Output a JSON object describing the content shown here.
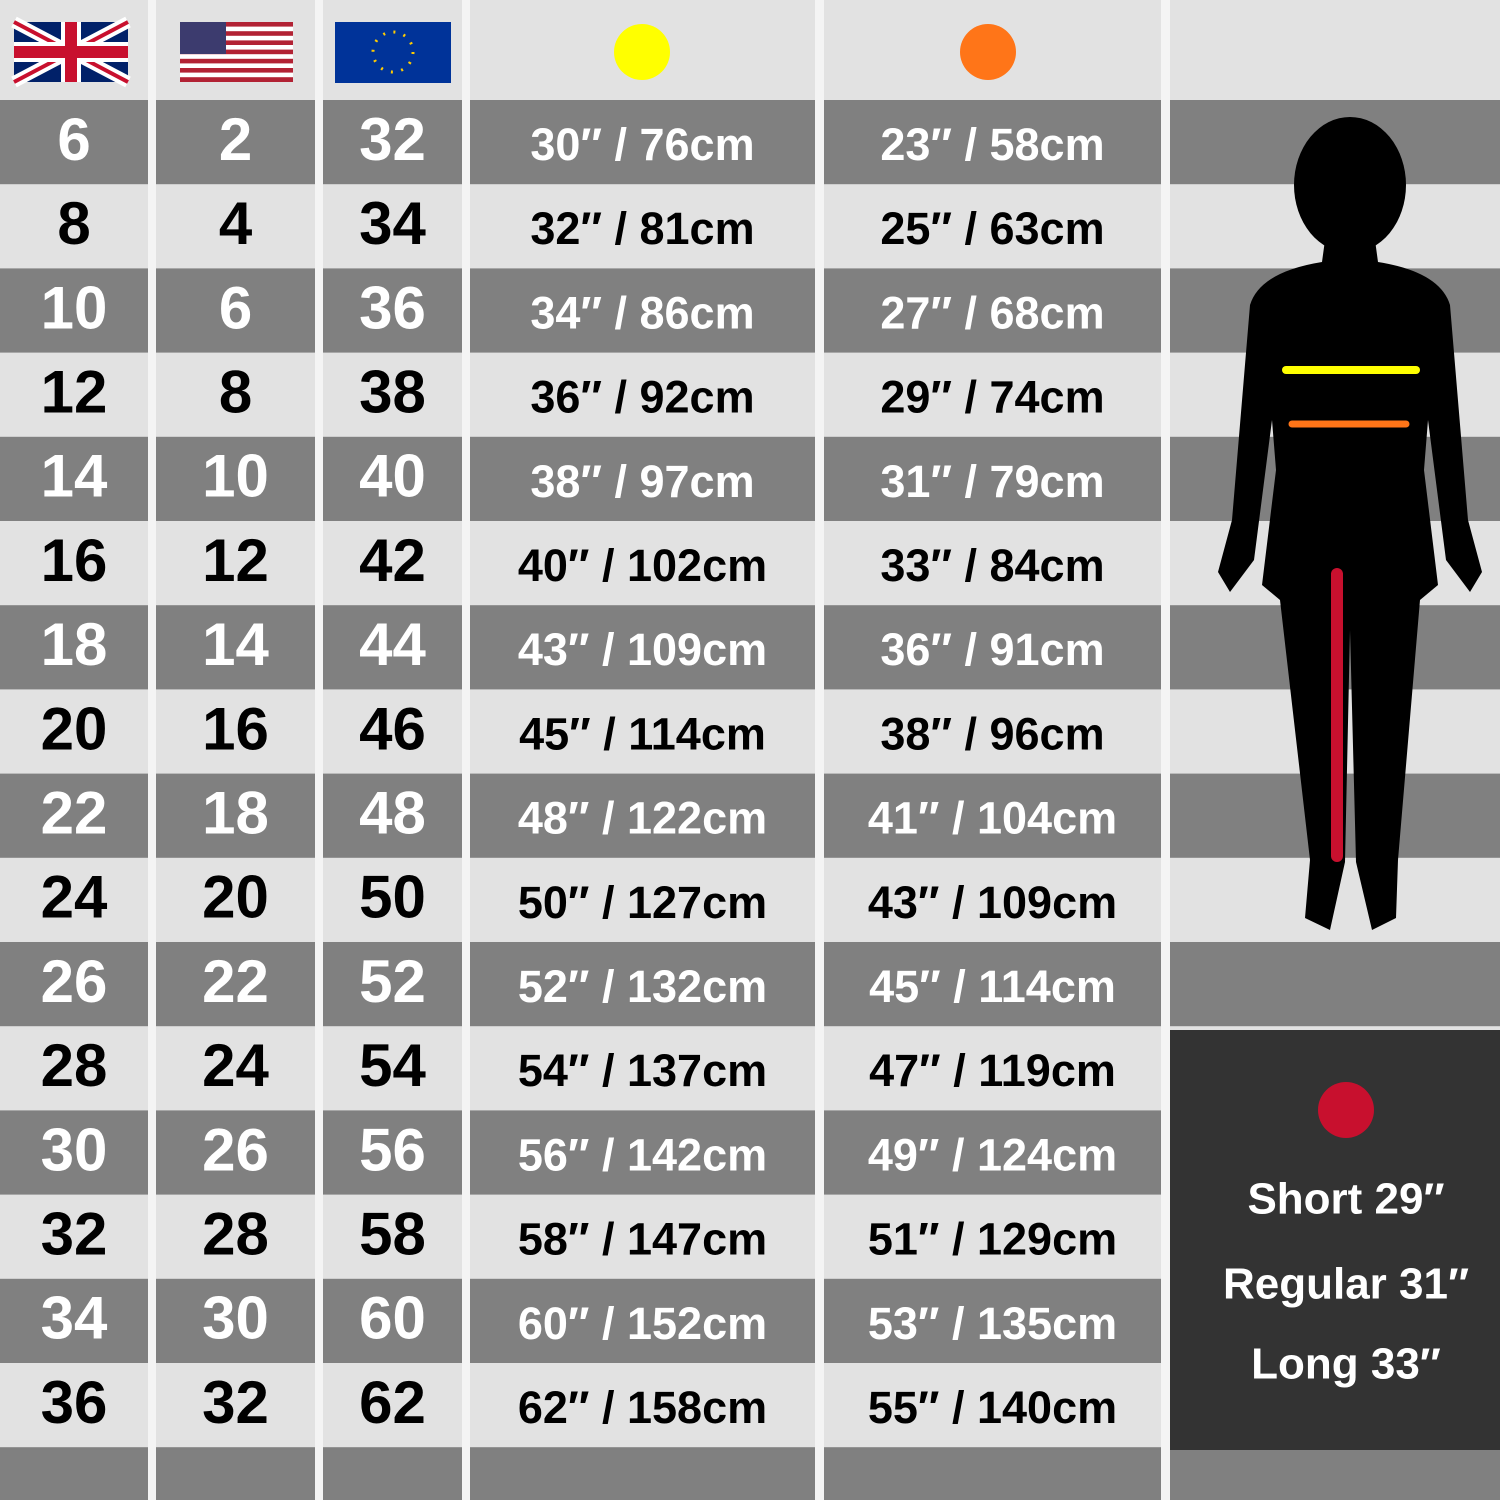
{
  "table": {
    "rows": [
      [
        6,
        2,
        32,
        "30″ / 76cm",
        "23″ / 58cm"
      ],
      [
        8,
        4,
        34,
        "32″ / 81cm",
        "25″ / 63cm"
      ],
      [
        10,
        6,
        36,
        "34″ / 86cm",
        "27″ / 68cm"
      ],
      [
        12,
        8,
        38,
        "36″ / 92cm",
        "29″ / 74cm"
      ],
      [
        14,
        10,
        40,
        "38″ / 97cm",
        "31″ / 79cm"
      ],
      [
        16,
        12,
        42,
        "40″ / 102cm",
        "33″ / 84cm"
      ],
      [
        18,
        14,
        44,
        "43″ / 109cm",
        "36″ / 91cm"
      ],
      [
        20,
        16,
        46,
        "45″ / 114cm",
        "38″ / 96cm"
      ],
      [
        22,
        18,
        48,
        "48″ / 122cm",
        "41″ / 104cm"
      ],
      [
        24,
        20,
        50,
        "50″ / 127cm",
        "43″ / 109cm"
      ],
      [
        26,
        22,
        52,
        "52″ / 132cm",
        "45″ / 114cm"
      ],
      [
        28,
        24,
        54,
        "54″ / 137cm",
        "47″ / 119cm"
      ],
      [
        30,
        26,
        56,
        "56″ / 142cm",
        "49″ / 124cm"
      ],
      [
        32,
        28,
        58,
        "58″ / 147cm",
        "51″ / 129cm"
      ],
      [
        34,
        30,
        60,
        "60″ / 152cm",
        "53″ / 135cm"
      ],
      [
        36,
        32,
        62,
        "62″ / 158cm",
        "55″ / 140cm"
      ]
    ]
  },
  "inseam": {
    "options": [
      "Short 29″",
      "Regular 31″",
      "Long 33″"
    ]
  }
}
